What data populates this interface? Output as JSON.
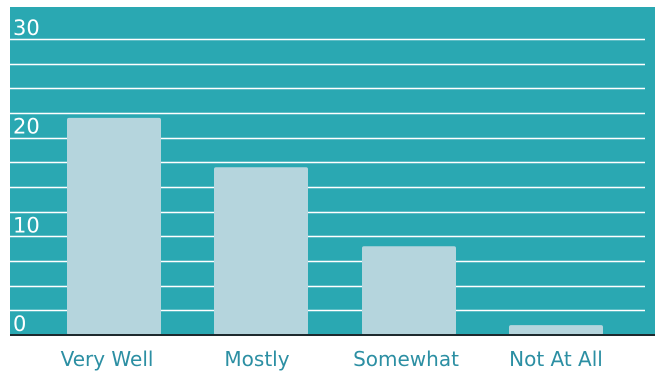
{
  "chart_data": {
    "type": "bar",
    "categories": [
      "Very Well",
      "Mostly",
      "Somewhat",
      "Not At All"
    ],
    "values": [
      22,
      17,
      9,
      1
    ],
    "ylim": [
      0,
      30
    ],
    "yticks": [
      0,
      10,
      20,
      30
    ],
    "grid": true,
    "minor_gridline_step": 2.5,
    "xlabel": "",
    "ylabel": "",
    "title": ""
  },
  "colors": {
    "plot_background": "#2aa8b2",
    "bar": "#b5d5dd",
    "gridline": "#ffffff",
    "baseline": "#1e2a2e",
    "tick_label": "#ffffff",
    "category_label": "#2c8fa3"
  }
}
